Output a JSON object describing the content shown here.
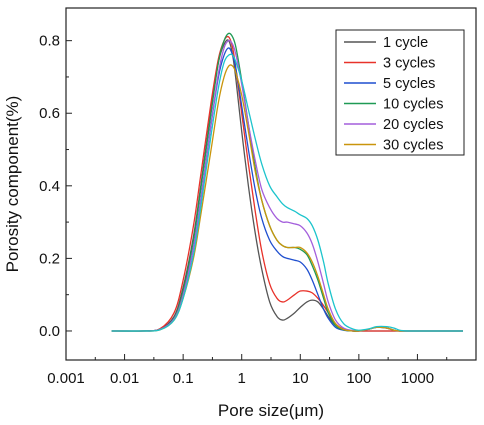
{
  "chart_data": {
    "type": "line",
    "xlabel": "Pore size(μm)",
    "ylabel": "Porosity component(%)",
    "x_scale": "log",
    "xlim": [
      0.001,
      10000
    ],
    "ylim": [
      -0.08,
      0.89
    ],
    "x_ticks": [
      0.001,
      0.01,
      0.1,
      1,
      10,
      100,
      1000
    ],
    "x_tick_labels": [
      "0.001",
      "0.01",
      "0.1",
      "1",
      "10",
      "100",
      "1000"
    ],
    "y_ticks": [
      0.0,
      0.2,
      0.4,
      0.6,
      0.8
    ],
    "y_tick_labels": [
      "0.0",
      "0.2",
      "0.4",
      "0.6",
      "0.8"
    ],
    "grid": false,
    "legend_position": "top-right",
    "series": [
      {
        "name": "1 cycle",
        "color": "#555555",
        "x": [
          0.006,
          0.02,
          0.04,
          0.07,
          0.1,
          0.15,
          0.2,
          0.3,
          0.4,
          0.5,
          0.6,
          0.7,
          0.8,
          1.0,
          1.3,
          1.7,
          2.2,
          3,
          4,
          5,
          6,
          8,
          10,
          13,
          16,
          20,
          25,
          30,
          40,
          55,
          80,
          100,
          150,
          200,
          300,
          400,
          500,
          700,
          1000,
          6000
        ],
        "y": [
          0,
          0,
          0.005,
          0.04,
          0.12,
          0.26,
          0.4,
          0.61,
          0.74,
          0.79,
          0.8,
          0.76,
          0.69,
          0.55,
          0.4,
          0.27,
          0.17,
          0.08,
          0.04,
          0.03,
          0.035,
          0.05,
          0.065,
          0.08,
          0.085,
          0.08,
          0.06,
          0.04,
          0.015,
          0.003,
          0,
          0,
          0,
          0,
          0,
          0,
          0,
          0,
          0,
          0
        ]
      },
      {
        "name": "3 cycles",
        "color": "#e8322a",
        "x": [
          0.006,
          0.02,
          0.04,
          0.07,
          0.1,
          0.15,
          0.2,
          0.3,
          0.4,
          0.5,
          0.6,
          0.7,
          0.8,
          1.0,
          1.3,
          1.7,
          2.2,
          3,
          4,
          5,
          6,
          8,
          10,
          13,
          16,
          20,
          25,
          30,
          40,
          55,
          80,
          100,
          150,
          200,
          300,
          400,
          500,
          700,
          1000,
          6000
        ],
        "y": [
          0,
          0,
          0.006,
          0.05,
          0.14,
          0.29,
          0.43,
          0.63,
          0.75,
          0.8,
          0.81,
          0.78,
          0.72,
          0.6,
          0.46,
          0.33,
          0.22,
          0.13,
          0.09,
          0.08,
          0.085,
          0.1,
          0.11,
          0.11,
          0.105,
          0.09,
          0.07,
          0.05,
          0.02,
          0.005,
          0,
          0,
          0,
          0,
          0,
          0,
          0,
          0,
          0,
          0
        ]
      },
      {
        "name": "5 cycles",
        "color": "#1f4fcf",
        "x": [
          0.006,
          0.02,
          0.04,
          0.07,
          0.1,
          0.15,
          0.2,
          0.3,
          0.4,
          0.5,
          0.6,
          0.7,
          0.8,
          1.0,
          1.3,
          1.7,
          2.2,
          3,
          4,
          5,
          6,
          8,
          10,
          13,
          16,
          20,
          25,
          30,
          40,
          55,
          80,
          100,
          150,
          200,
          300,
          400,
          500,
          700,
          1000,
          6000
        ],
        "y": [
          0,
          0,
          0.004,
          0.035,
          0.1,
          0.23,
          0.36,
          0.57,
          0.7,
          0.76,
          0.78,
          0.76,
          0.72,
          0.62,
          0.5,
          0.39,
          0.31,
          0.25,
          0.22,
          0.205,
          0.2,
          0.195,
          0.19,
          0.17,
          0.14,
          0.1,
          0.06,
          0.035,
          0.01,
          0.002,
          0,
          0,
          0.005,
          0.01,
          0.008,
          0.002,
          0,
          0,
          0,
          0
        ]
      },
      {
        "name": "10 cycles",
        "color": "#1f9a55",
        "x": [
          0.006,
          0.02,
          0.04,
          0.07,
          0.1,
          0.15,
          0.2,
          0.3,
          0.4,
          0.5,
          0.6,
          0.7,
          0.8,
          1.0,
          1.3,
          1.7,
          2.2,
          3,
          4,
          5,
          6,
          8,
          10,
          13,
          16,
          20,
          25,
          30,
          40,
          55,
          80,
          100,
          150,
          200,
          300,
          400,
          500,
          700,
          1000,
          6000
        ],
        "y": [
          0,
          0,
          0.004,
          0.035,
          0.11,
          0.25,
          0.39,
          0.6,
          0.74,
          0.8,
          0.82,
          0.81,
          0.78,
          0.69,
          0.57,
          0.45,
          0.36,
          0.29,
          0.25,
          0.235,
          0.23,
          0.23,
          0.225,
          0.21,
          0.18,
          0.14,
          0.09,
          0.05,
          0.015,
          0.003,
          0,
          0,
          0.005,
          0.01,
          0.008,
          0.002,
          0,
          0,
          0,
          0
        ]
      },
      {
        "name": "20 cycles",
        "color": "#a45fdc",
        "x": [
          0.006,
          0.02,
          0.04,
          0.07,
          0.1,
          0.15,
          0.2,
          0.3,
          0.4,
          0.5,
          0.6,
          0.7,
          0.8,
          1.0,
          1.3,
          1.7,
          2.2,
          3,
          4,
          5,
          6,
          8,
          10,
          13,
          16,
          20,
          25,
          30,
          40,
          55,
          80,
          100,
          150,
          200,
          300,
          400,
          500,
          700,
          1000,
          6000
        ],
        "y": [
          0,
          0,
          0.004,
          0.033,
          0.1,
          0.23,
          0.36,
          0.57,
          0.71,
          0.78,
          0.8,
          0.79,
          0.76,
          0.68,
          0.57,
          0.47,
          0.39,
          0.34,
          0.31,
          0.3,
          0.3,
          0.295,
          0.29,
          0.27,
          0.24,
          0.19,
          0.13,
          0.08,
          0.03,
          0.008,
          0.001,
          0,
          0.005,
          0.01,
          0.008,
          0.002,
          0,
          0,
          0,
          0
        ]
      },
      {
        "name": "30 cycles",
        "color": "#c9950c",
        "x": [
          0.006,
          0.02,
          0.04,
          0.07,
          0.1,
          0.15,
          0.2,
          0.3,
          0.4,
          0.5,
          0.6,
          0.7,
          0.8,
          1.0,
          1.3,
          1.7,
          2.2,
          3,
          4,
          5,
          6,
          8,
          10,
          13,
          16,
          20,
          25,
          30,
          40,
          55,
          80,
          100,
          150,
          200,
          300,
          400,
          500,
          700,
          1000,
          6000
        ],
        "y": [
          0,
          0,
          0.003,
          0.03,
          0.09,
          0.2,
          0.32,
          0.5,
          0.63,
          0.7,
          0.73,
          0.73,
          0.71,
          0.65,
          0.55,
          0.44,
          0.36,
          0.29,
          0.25,
          0.235,
          0.23,
          0.23,
          0.23,
          0.215,
          0.19,
          0.15,
          0.1,
          0.06,
          0.02,
          0.004,
          0,
          0,
          0.005,
          0.01,
          0.008,
          0.002,
          0,
          0,
          0,
          0
        ]
      },
      {
        "name": "",
        "color": "#1cc4cc",
        "x": [
          0.006,
          0.02,
          0.04,
          0.07,
          0.1,
          0.15,
          0.2,
          0.3,
          0.4,
          0.5,
          0.6,
          0.7,
          0.8,
          1.0,
          1.3,
          1.7,
          2.2,
          3,
          4,
          5,
          6,
          8,
          10,
          13,
          16,
          20,
          25,
          30,
          40,
          55,
          80,
          100,
          150,
          200,
          300,
          400,
          500,
          700,
          1000,
          6000
        ],
        "y": [
          0,
          0,
          0.003,
          0.03,
          0.09,
          0.21,
          0.34,
          0.54,
          0.67,
          0.74,
          0.76,
          0.76,
          0.74,
          0.69,
          0.61,
          0.53,
          0.46,
          0.4,
          0.37,
          0.35,
          0.34,
          0.33,
          0.32,
          0.31,
          0.29,
          0.25,
          0.19,
          0.13,
          0.06,
          0.02,
          0.005,
          0.002,
          0.006,
          0.012,
          0.012,
          0.008,
          0.002,
          0,
          0,
          0
        ]
      }
    ]
  }
}
